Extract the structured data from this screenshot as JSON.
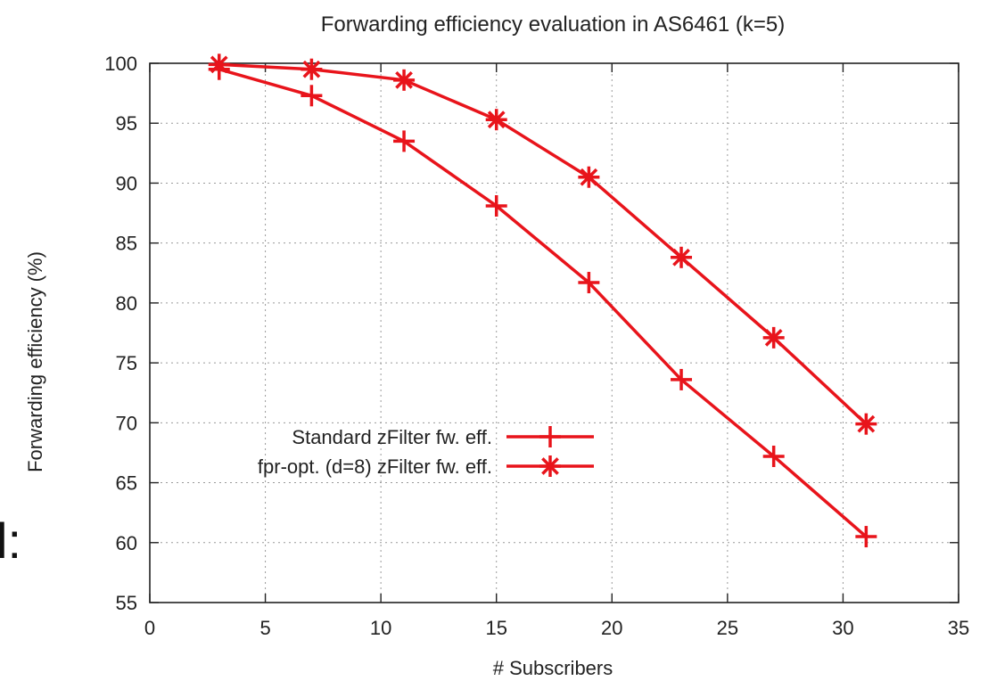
{
  "chart_data": {
    "type": "line",
    "title": "Forwarding efficiency evaluation in AS6461 (k=5)",
    "xlabel": "# Subscribers",
    "ylabel": "Forwarding efficiency (%)",
    "xlim": [
      0,
      35
    ],
    "ylim": [
      55,
      100
    ],
    "xticks": [
      0,
      5,
      10,
      15,
      20,
      25,
      30,
      35
    ],
    "yticks": [
      55,
      60,
      65,
      70,
      75,
      80,
      85,
      90,
      95,
      100
    ],
    "grid": true,
    "legend_position": "center-left",
    "series_color": "#e8141b",
    "series": [
      {
        "name": "Standard zFilter fw. eff.",
        "marker": "plus",
        "x": [
          3,
          7,
          11,
          15,
          19,
          23,
          27,
          31
        ],
        "y": [
          99.5,
          97.3,
          93.5,
          88.1,
          81.7,
          73.6,
          67.2,
          60.5
        ]
      },
      {
        "name": "fpr-opt. (d=8) zFilter fw. eff.",
        "marker": "star",
        "x": [
          3,
          7,
          11,
          15,
          19,
          23,
          27,
          31
        ],
        "y": [
          99.9,
          99.5,
          98.6,
          95.3,
          90.5,
          83.8,
          77.1,
          69.9
        ]
      }
    ]
  },
  "left_fragment_text": "l:"
}
